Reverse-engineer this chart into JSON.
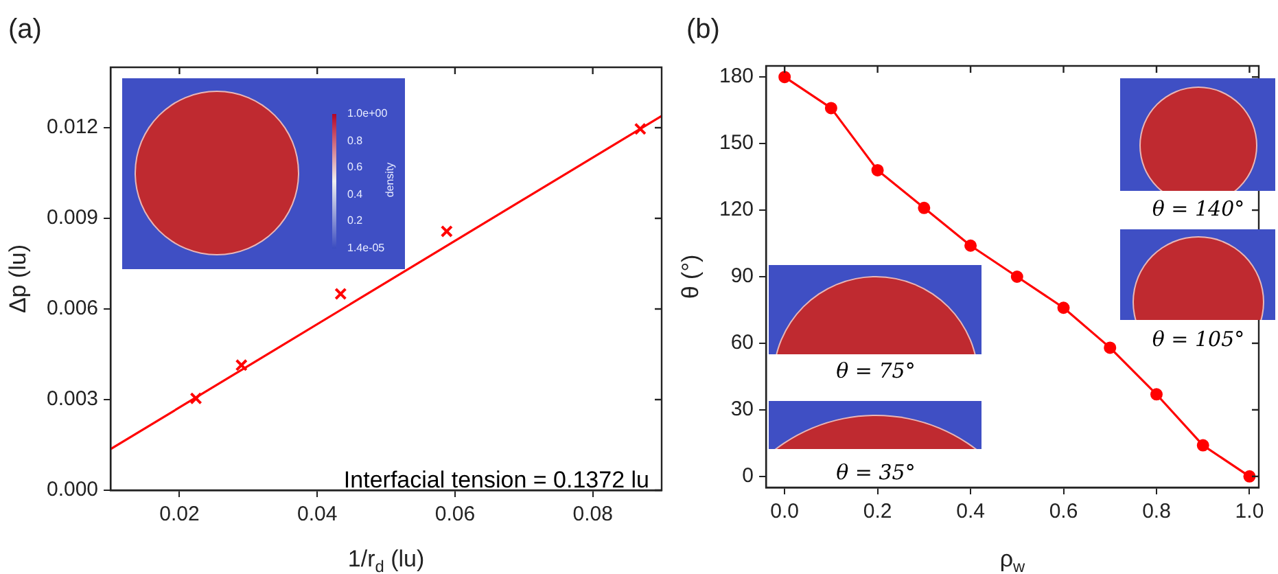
{
  "chart_data": [
    {
      "type": "scatter",
      "title": "(a)",
      "xlabel": "1/r$_{d}$ (lu)",
      "ylabel": "Δp (lu)",
      "series": [
        {
          "type": "scatter",
          "color": "#ff0000",
          "marker": "cross",
          "x": [
            0.0224,
            0.029,
            0.0434,
            0.0588,
            0.0869
          ],
          "values": [
            0.00304,
            0.00414,
            0.0065,
            0.00857,
            0.01196
          ]
        },
        {
          "type": "line",
          "color": "#ff0000",
          "marker": "none",
          "x": [
            0.01,
            0.09
          ],
          "values": [
            0.00136,
            0.01239
          ]
        }
      ],
      "xlim": [
        0.01,
        0.09
      ],
      "xticks": [
        0.02,
        0.04,
        0.06,
        0.08
      ],
      "ylim": [
        0,
        0.014
      ],
      "yticks": [
        {
          "value": 0,
          "label": "0.000"
        },
        0.003,
        0.006,
        0.009,
        0.012
      ],
      "grid": false,
      "legend": false,
      "annotations": [
        "Interfacial tension = 0.1372 lu",
        "1.0e+00",
        "0.8",
        "0.6",
        "0.4",
        "0.2",
        "1.4e-05",
        "density"
      ]
    },
    {
      "type": "line",
      "title": "(b)",
      "xlabel": "ρ$_{w}$",
      "ylabel": "θ (°)",
      "series": [
        {
          "color": "#ff0000",
          "marker": "circle",
          "x": [
            0,
            0.1,
            0.2,
            0.3,
            0.4,
            0.5,
            0.6,
            0.7,
            0.8,
            0.9,
            1.0
          ],
          "values": [
            180,
            166,
            138,
            121,
            104,
            90,
            76,
            58,
            37,
            14,
            0
          ]
        }
      ],
      "xlim": [
        -0.04,
        1.02
      ],
      "xticks": [
        {
          "value": 0,
          "label": "0.0"
        },
        0.2,
        0.4,
        0.6,
        0.8,
        {
          "value": 1,
          "label": "1.0"
        }
      ],
      "ylim": [
        -5,
        185
      ],
      "yticks": [
        0,
        30,
        60,
        90,
        120,
        150,
        180
      ],
      "grid": false,
      "legend": false,
      "annotations": [
        "θ = 140°",
        "θ = 105°",
        "θ = 75°",
        "θ = 35°"
      ]
    }
  ]
}
